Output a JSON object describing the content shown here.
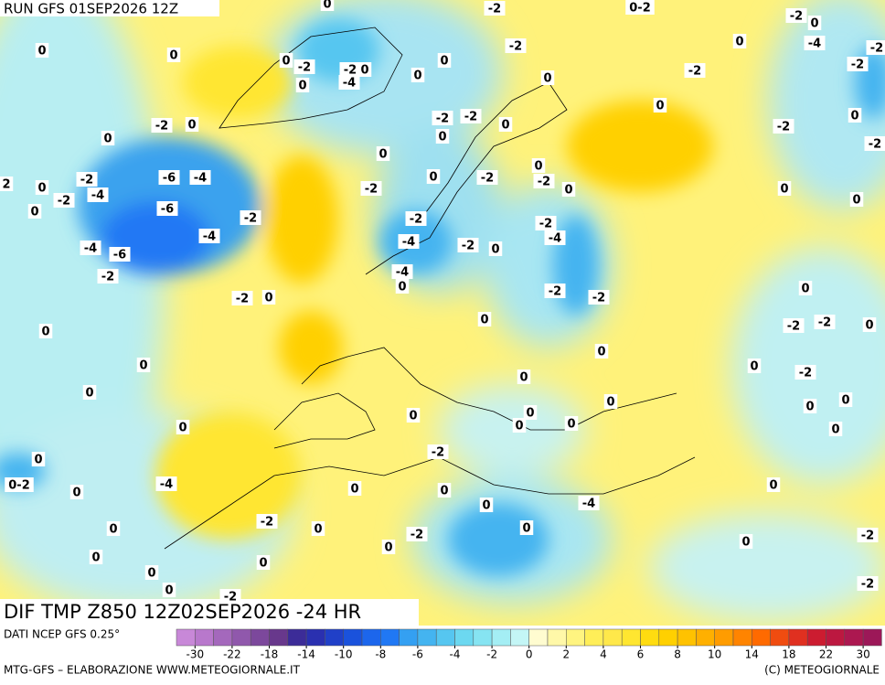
{
  "header": "RUN GFS 01SEP2026 12Z",
  "footer_title": "DIF TMP Z850 12Z02SEP2026 -24 HR",
  "source": "DATI NCEP GFS 0.25°",
  "credit_left": "MTG-GFS – ELABORAZIONE WWW.METEOGIORNALE.IT",
  "credit_right": "(C) METEOGIORNALE",
  "map": {
    "contour_labels": [
      "0",
      "-2",
      "0-2",
      "-2",
      "0",
      "-4",
      "0",
      "-2",
      "-2",
      "0",
      "0",
      "0",
      "-2",
      "-2",
      "0",
      "-4",
      "0",
      "-2",
      "0",
      "0",
      "-2",
      "0",
      "0",
      "-2",
      "-2",
      "0",
      "0",
      "-2",
      "-2",
      "0",
      "0",
      "0",
      "-2",
      "0",
      "0",
      "-2",
      "-2",
      "0",
      "0",
      "-2",
      "-6",
      "-4",
      "-2",
      "-4",
      "0",
      "-2",
      "0",
      "0",
      "0",
      "2",
      "-6",
      "-2",
      "-2",
      "-2",
      "-4",
      "-4",
      "-4",
      "-2",
      "0",
      "-4",
      "-6",
      "-2",
      "-4",
      "0",
      "-2",
      "-2",
      "-2",
      "0",
      "0",
      "0",
      "-2",
      "-2",
      "0",
      "0",
      "0",
      "0",
      "0",
      "-2",
      "0",
      "0",
      "0",
      "0",
      "0",
      "0",
      "0",
      "0",
      "0",
      "0",
      "0",
      "-2",
      "0",
      "0-2",
      "-4",
      "0",
      "0",
      "0",
      "0",
      "0",
      "-4",
      "0",
      "-2",
      "0",
      "0",
      "-2",
      "-2",
      "0",
      "0",
      "0",
      "0",
      "0",
      "0",
      "-2",
      "-2",
      "0"
    ]
  },
  "scale": {
    "ticks": [
      -30,
      -22,
      -18,
      -14,
      -10,
      -8,
      -6,
      -4,
      -2,
      0,
      2,
      4,
      6,
      8,
      10,
      14,
      18,
      22,
      30
    ],
    "colors": [
      "#c888d8",
      "#b878cc",
      "#a468bc",
      "#9058ac",
      "#7c489c",
      "#68388c",
      "#3c2c98",
      "#2a30b0",
      "#2040c8",
      "#1a52dc",
      "#1c66ec",
      "#2078f4",
      "#34a0f2",
      "#44b4f0",
      "#56c6f0",
      "#6cd8f0",
      "#86e4f2",
      "#a4eef4",
      "#c4f6f6",
      "#fffcd0",
      "#fff8a8",
      "#fff480",
      "#ffee58",
      "#ffe84a",
      "#ffe630",
      "#ffdc10",
      "#ffd000",
      "#ffc200",
      "#ffb000",
      "#ff9c00",
      "#ff8400",
      "#ff6a00",
      "#f04c10",
      "#e03020",
      "#cc1c30",
      "#bc1840",
      "#ac1850",
      "#9c1858"
    ]
  }
}
